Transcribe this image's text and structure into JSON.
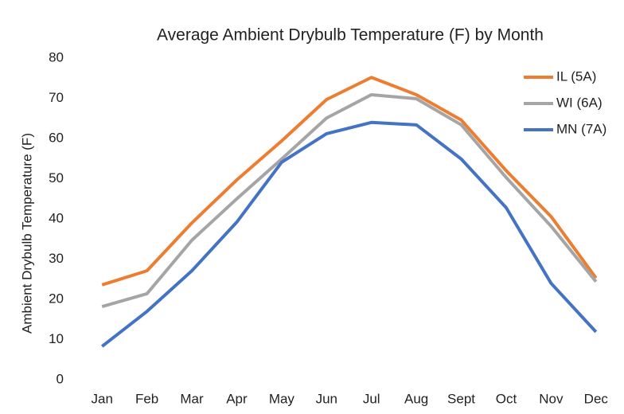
{
  "chart_data": {
    "type": "line",
    "title": "Average Ambient Drybulb Temperature (F) by Month",
    "y_label": "Ambient Drybulb Temperature (F)",
    "categories": [
      "Jan",
      "Feb",
      "Mar",
      "Apr",
      "May",
      "Jun",
      "Jul",
      "Aug",
      "Sept",
      "Oct",
      "Nov",
      "Dec"
    ],
    "series": [
      {
        "name": "IL (5A)",
        "color": "#ed7d31",
        "values": [
          23.6,
          27.1,
          39,
          49.7,
          59.4,
          69.7,
          75.2,
          70.9,
          64.6,
          52,
          40.6,
          25.3
        ]
      },
      {
        "name": "WI (6A)",
        "color": "#a5a5a5",
        "values": [
          18.2,
          21.4,
          34.7,
          45,
          54.9,
          65.1,
          70.9,
          69.9,
          63.4,
          50.3,
          38.2,
          24.4
        ]
      },
      {
        "name": "MN (7A)",
        "color": "#4472c4",
        "values": [
          8.3,
          17,
          27.1,
          39.2,
          54.1,
          61.2,
          64,
          63.4,
          54.9,
          42.8,
          24,
          11.9
        ]
      }
    ],
    "ylim": [
      0,
      80
    ],
    "yticks": [
      0,
      10,
      20,
      30,
      40,
      50,
      60,
      70,
      80
    ],
    "grid": false,
    "legend": "top-right"
  }
}
